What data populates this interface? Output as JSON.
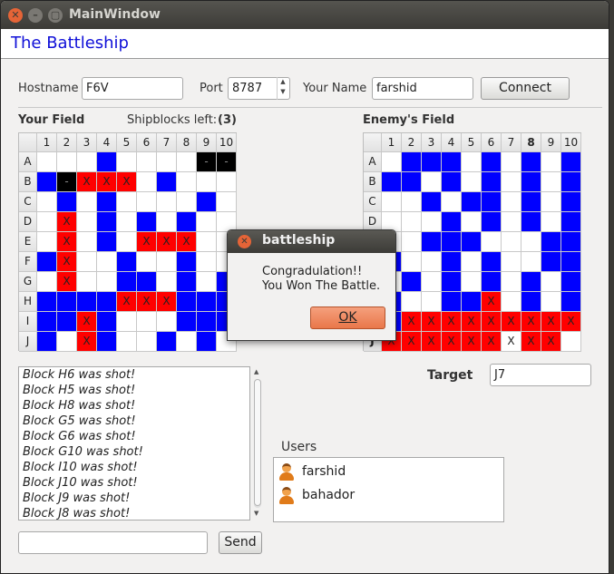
{
  "window": {
    "title": "MainWindow"
  },
  "app": {
    "title": "The Battleship"
  },
  "connection": {
    "hostname_label": "Hostname",
    "hostname_value": "F6V",
    "port_label": "Port",
    "port_value": "8787",
    "name_label": "Your Name",
    "name_value": "farshid",
    "connect_label": "Connect"
  },
  "your_field": {
    "title": "Your Field",
    "shipblocks_label": "Shipblocks left:",
    "shipblocks_value": "(3)",
    "cols": [
      "1",
      "2",
      "3",
      "4",
      "5",
      "6",
      "7",
      "8",
      "9",
      "10"
    ],
    "rows": [
      "A",
      "B",
      "C",
      "D",
      "E",
      "F",
      "G",
      "H",
      "I",
      "J"
    ],
    "grid": [
      "...S....KK",
      "SKHHH.S...",
      ".S.S....S.",
      ".H.S.S.S..",
      ".H.S.HHH..",
      "SH..S..S..",
      ".H..SS.S.S",
      "SSSSHHHSSS",
      "SSHS...SSS",
      "S.HS..S.S."
    ]
  },
  "enemy_field": {
    "title": "Enemy's Field",
    "cols": [
      "1",
      "2",
      "3",
      "4",
      "5",
      "6",
      "7",
      "8",
      "9",
      "10"
    ],
    "rows": [
      "A",
      "B",
      "C",
      "D",
      "E",
      "F",
      "G",
      "H",
      "I",
      "J"
    ],
    "grid": [
      ".SSS.S.S.S",
      "SS.S.S.S.S",
      "..S.SS.S.S",
      "...S.S.S.S",
      "..SSS...SS",
      "S..S.S..SS",
      ".S.S.S.S.S",
      "S..SSH.S.S",
      "SHHHHHHHHH",
      "HHHHHHXHH."
    ],
    "highlight_col": "8",
    "highlight_row": "J"
  },
  "log": {
    "lines": [
      "Block H6 was shot!",
      "Block H5 was shot!",
      "Block H8 was shot!",
      "Block G5 was shot!",
      "Block G6 was shot!",
      "Block G10 was shot!",
      "Block I10 was shot!",
      "Block J10 was shot!",
      "Block J9 was shot!",
      "Block J8 was shot!"
    ]
  },
  "target": {
    "label": "Target",
    "value": "J7"
  },
  "chat": {
    "input_value": "",
    "send_label": "Send"
  },
  "users": {
    "label": "Users",
    "items": [
      "farshid",
      "bahador"
    ]
  },
  "dialog": {
    "title": "battleship",
    "message_line1": "Congradulation!!",
    "message_line2": "You Won The Battle.",
    "ok_label": "OK"
  },
  "colors": {
    "ship": "#0000ff",
    "hit": "#ff0000",
    "sunk_or_miss": "#000000",
    "app_title": "#1010d8"
  }
}
